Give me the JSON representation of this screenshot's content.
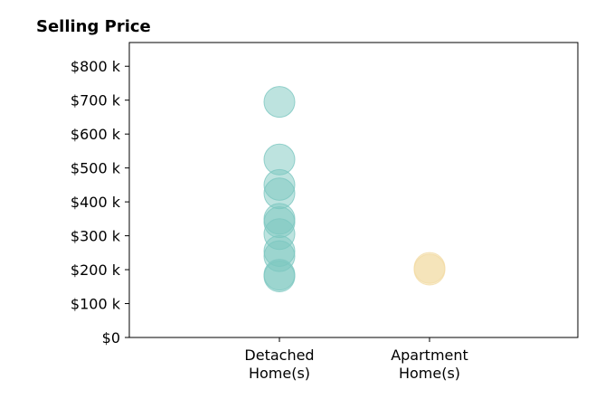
{
  "chart_data": {
    "type": "scatter",
    "title": "Selling Price",
    "xlabel": "",
    "ylabel": "",
    "ylim": [
      0,
      870
    ],
    "y_ticks": [
      {
        "value": 0,
        "label": "$0"
      },
      {
        "value": 100,
        "label": "$100 k"
      },
      {
        "value": 200,
        "label": "$200 k"
      },
      {
        "value": 300,
        "label": "$300 k"
      },
      {
        "value": 400,
        "label": "$400 k"
      },
      {
        "value": 500,
        "label": "$500 k"
      },
      {
        "value": 600,
        "label": "$600 k"
      },
      {
        "value": 700,
        "label": "$700 k"
      },
      {
        "value": 800,
        "label": "$800 k"
      }
    ],
    "categories": [
      {
        "label_line1": "Detached",
        "label_line2": "Home(s)"
      },
      {
        "label_line1": "Apartment",
        "label_line2": "Home(s)"
      }
    ],
    "grid": false,
    "series": [
      {
        "category_index": 0,
        "color": "#7cc7c0",
        "values": [
          695,
          525,
          450,
          425,
          350,
          340,
          305,
          255,
          240,
          185,
          180
        ]
      },
      {
        "category_index": 1,
        "color": "#f2dba4",
        "values": [
          205,
          200
        ]
      }
    ]
  }
}
